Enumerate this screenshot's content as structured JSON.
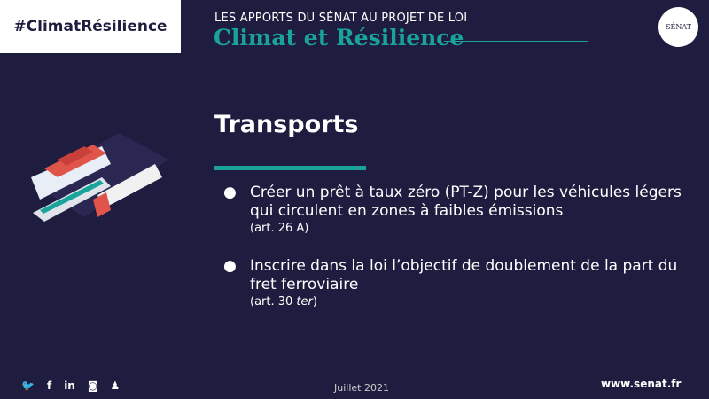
{
  "header": {
    "hashtag": "#ClimatRésilience",
    "kicker": "LES APPORTS DU SÉNAT AU PROJET DE LOI",
    "title": "Climat et Résilience",
    "logo_text": "SÉNAT"
  },
  "section": {
    "title": "Transports"
  },
  "bullets": [
    {
      "text": "Créer un prêt à taux zéro (PT-Z) pour les véhicules légers qui circulent en zones à faibles émissions",
      "ref": "(art. 26 A)"
    },
    {
      "text": "Inscrire dans la loi l’objectif de doublement de la part du fret ferroviaire",
      "ref_prefix": "(art. 30 ",
      "ref_italic": "ter",
      "ref_suffix": ")"
    }
  ],
  "footer": {
    "date": "Juillet 2021",
    "url": "www.senat.fr",
    "social": [
      "twitter-icon",
      "facebook-icon",
      "linkedin-icon",
      "instagram-icon",
      "snapchat-icon"
    ]
  },
  "colors": {
    "background": "#1f1d3f",
    "accent": "#1aa39a"
  }
}
